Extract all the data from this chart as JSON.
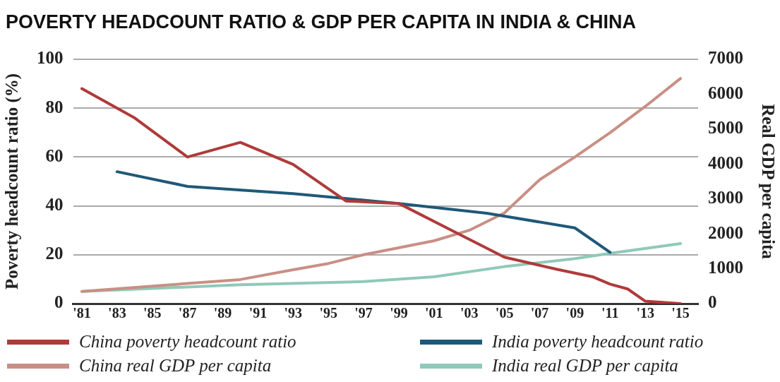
{
  "chart_data": {
    "type": "line",
    "title": "POVERTY HEADCOUNT RATIO & GDP PER CAPITA IN INDIA & CHINA",
    "ylabel": "Poverty headcount ratio (%)",
    "y2label": "Real GDP per capita",
    "xlim": [
      1980.5,
      2016
    ],
    "xticks": [
      {
        "value": 1981,
        "label": "'81"
      },
      {
        "value": 1983,
        "label": "'83"
      },
      {
        "value": 1985,
        "label": "'85"
      },
      {
        "value": 1987,
        "label": "'87"
      },
      {
        "value": 1989,
        "label": "'89"
      },
      {
        "value": 1991,
        "label": "'91"
      },
      {
        "value": 1993,
        "label": "'93"
      },
      {
        "value": 1995,
        "label": "'95"
      },
      {
        "value": 1997,
        "label": "'97"
      },
      {
        "value": 1999,
        "label": "'99"
      },
      {
        "value": 2001,
        "label": "'01"
      },
      {
        "value": 2003,
        "label": "'03"
      },
      {
        "value": 2005,
        "label": "'05"
      },
      {
        "value": 2007,
        "label": "'07"
      },
      {
        "value": 2009,
        "label": "'09"
      },
      {
        "value": 2011,
        "label": "'11"
      },
      {
        "value": 2013,
        "label": "'13"
      },
      {
        "value": 2015,
        "label": "'15"
      }
    ],
    "ylim": [
      0,
      100
    ],
    "yticks": [
      0,
      20,
      40,
      60,
      80,
      100
    ],
    "y2lim": [
      0,
      7000
    ],
    "y2ticks": [
      0,
      1000,
      2000,
      3000,
      4000,
      5000,
      6000,
      7000
    ],
    "grid": "y",
    "legend": "bottom",
    "marker": "none",
    "line_style": "solid",
    "series": [
      {
        "name": "China poverty headcount ratio",
        "color": "#b03a3a",
        "x": [
          1981,
          1984,
          1987,
          1990,
          1993,
          1996,
          1999,
          2002,
          2005,
          2008,
          2010,
          2011,
          2012,
          2013,
          2015
        ],
        "values": [
          88,
          76,
          60,
          66,
          57,
          42,
          41,
          30,
          19,
          14,
          11,
          8,
          6,
          1,
          0
        ]
      },
      {
        "name": "India poverty headcount ratio",
        "color": "#1f5878",
        "x": [
          1983,
          1987,
          1993,
          1999,
          2004,
          2009,
          2011
        ],
        "values": [
          54,
          48,
          45,
          41,
          37,
          31,
          21
        ]
      },
      {
        "name": "China real GDP per capita",
        "color": "#c98f85",
        "axis": "y2",
        "x": [
          1981,
          1990,
          1993,
          1995,
          1997,
          2001,
          2003,
          2005,
          2007,
          2009,
          2011,
          2013,
          2015
        ],
        "values": [
          350,
          690,
          970,
          1150,
          1400,
          1800,
          2100,
          2600,
          3550,
          4200,
          4900,
          5650,
          6450
        ]
      },
      {
        "name": "India real GDP per capita",
        "color": "#8fc9b8",
        "axis": "y2",
        "x": [
          1981,
          1990,
          1997,
          2001,
          2005,
          2009,
          2011,
          2015
        ],
        "values": [
          350,
          540,
          630,
          770,
          1060,
          1290,
          1440,
          1720
        ]
      }
    ]
  }
}
